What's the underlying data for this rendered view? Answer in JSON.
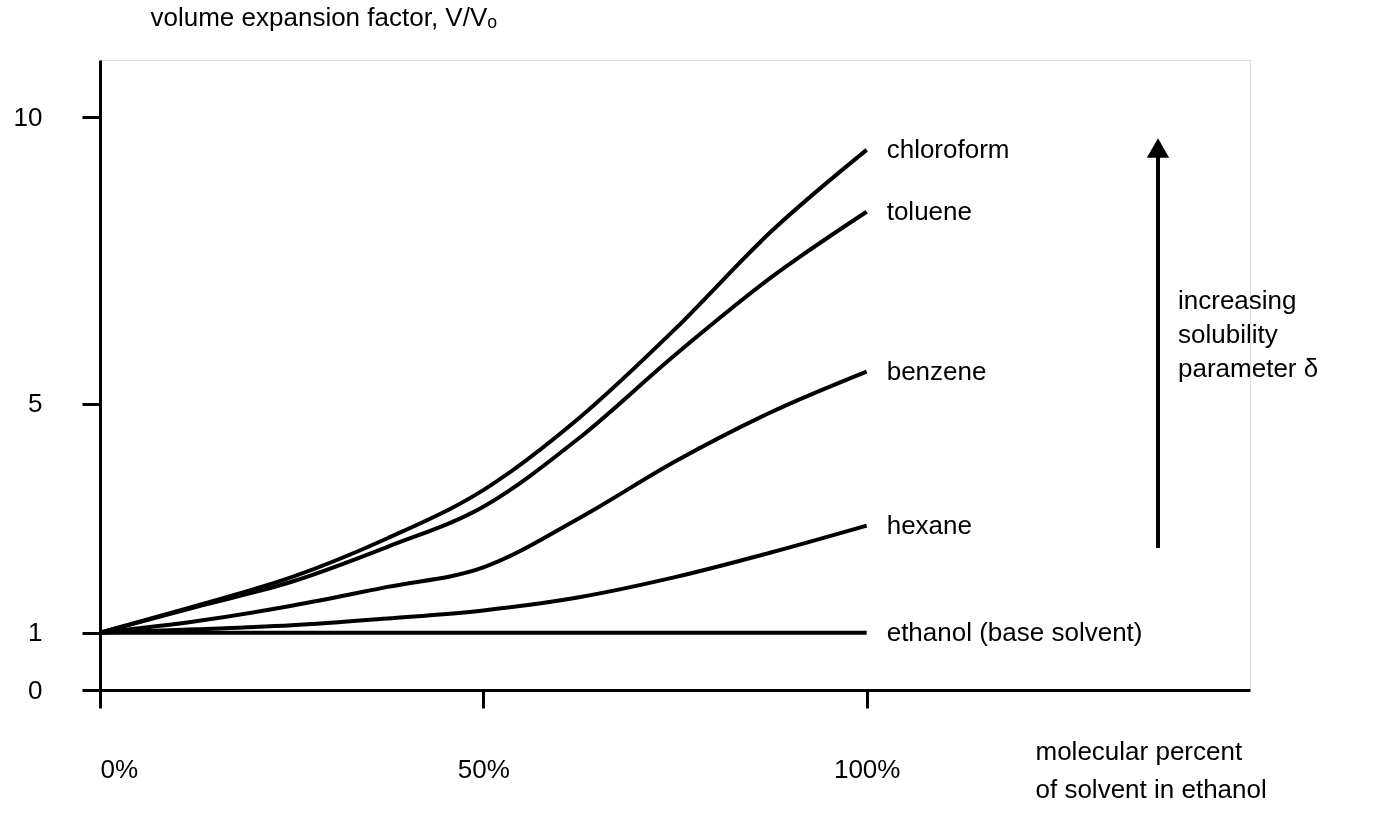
{
  "chart_data": {
    "type": "line",
    "xlabel": "molecular percent\nof solvent in ethanol",
    "ylabel": "volume expansion factor, V/Vₒ",
    "x": [
      0,
      12.5,
      25,
      37.5,
      50,
      62.5,
      75,
      87.5,
      100
    ],
    "series": [
      {
        "name": "chloroform",
        "color": "#000000",
        "values": [
          1,
          1.47,
          1.97,
          2.65,
          3.49,
          4.75,
          6.3,
          8.0,
          9.43
        ]
      },
      {
        "name": "toluene",
        "color": "#000000",
        "values": [
          1,
          1.45,
          1.89,
          2.5,
          3.2,
          4.4,
          5.85,
          7.2,
          8.35
        ]
      },
      {
        "name": "benzene",
        "color": "#000000",
        "values": [
          1,
          1.2,
          1.47,
          1.8,
          2.14,
          3.0,
          3.99,
          4.85,
          5.56
        ]
      },
      {
        "name": "hexane",
        "color": "#000000",
        "values": [
          1,
          1.06,
          1.13,
          1.25,
          1.39,
          1.62,
          1.97,
          2.4,
          2.87
        ]
      },
      {
        "name": "ethanol (base solvent)",
        "color": "#000000",
        "values": [
          1,
          1,
          1,
          1,
          1,
          1,
          1,
          1,
          1
        ]
      }
    ],
    "xlim": [
      0,
      150
    ],
    "ylim": [
      0,
      11
    ],
    "xticks": [
      {
        "value": 0,
        "label": "0%"
      },
      {
        "value": 50,
        "label": "50%"
      },
      {
        "value": 100,
        "label": "100%"
      }
    ],
    "yticks": [
      0,
      1,
      5,
      10
    ],
    "annotations": [
      "increasing\nsolubility\nparameter δ"
    ],
    "grid": false,
    "legend": false,
    "line_style": "solid",
    "marker": "none"
  }
}
